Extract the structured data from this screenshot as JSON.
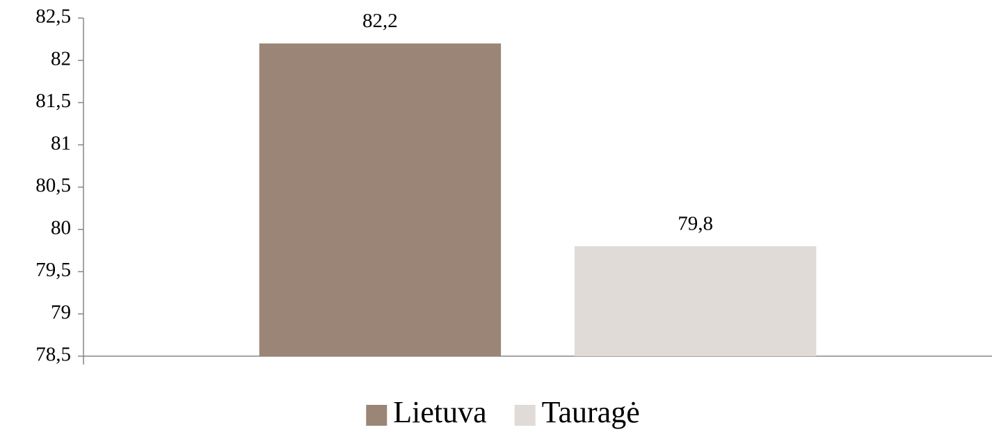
{
  "chart_data": {
    "type": "bar",
    "categories": [
      null
    ],
    "series": [
      {
        "name": "Lietuva",
        "color": "#9b8576",
        "values": [
          82.2
        ],
        "value_labels": [
          "82,2"
        ]
      },
      {
        "name": "Tauragė",
        "color": "#e0dbd6",
        "values": [
          79.8
        ],
        "value_labels": [
          "79,8"
        ]
      }
    ],
    "ylim": [
      78.5,
      82.5
    ],
    "yticks": [
      {
        "value": 78.5,
        "label": "78,5"
      },
      79,
      {
        "value": 79.5,
        "label": "79,5"
      },
      80,
      {
        "value": 80.5,
        "label": "80,5"
      },
      81,
      {
        "value": 81.5,
        "label": "81,5"
      },
      82,
      {
        "value": 82.5,
        "label": "82,5"
      }
    ],
    "legend": "bottom"
  }
}
